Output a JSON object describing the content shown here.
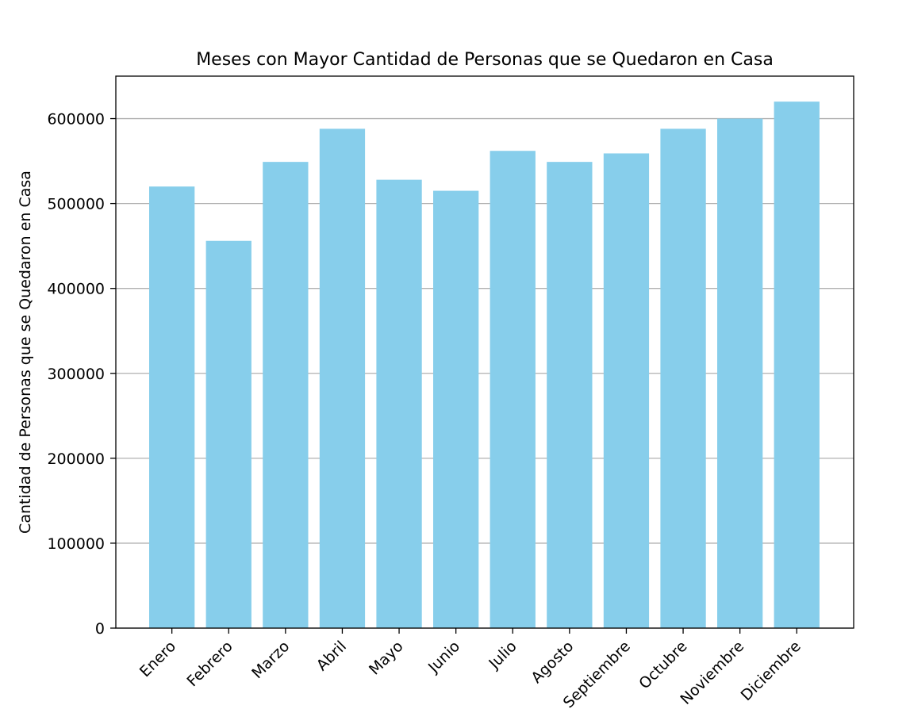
{
  "chart_data": {
    "type": "bar",
    "title": "Meses con Mayor Cantidad de Personas que se Quedaron en Casa",
    "xlabel": "",
    "ylabel": "Cantidad de Personas que se Quedaron en Casa",
    "categories": [
      "Enero",
      "Febrero",
      "Marzo",
      "Abril",
      "Mayo",
      "Junio",
      "Julio",
      "Agosto",
      "Septiembre",
      "Octubre",
      "Noviembre",
      "Diciembre"
    ],
    "values": [
      520000,
      456000,
      549000,
      588000,
      528000,
      515000,
      562000,
      549000,
      559000,
      588000,
      600000,
      620000
    ],
    "ylim": [
      0,
      650000
    ],
    "yticks": [
      0,
      100000,
      200000,
      300000,
      400000,
      500000,
      600000
    ],
    "ytick_labels": [
      "0",
      "100000",
      "200000",
      "300000",
      "400000",
      "500000",
      "600000"
    ],
    "grid": "y",
    "bar_color": "#87ceeb",
    "grid_color": "#b0b0b0"
  }
}
